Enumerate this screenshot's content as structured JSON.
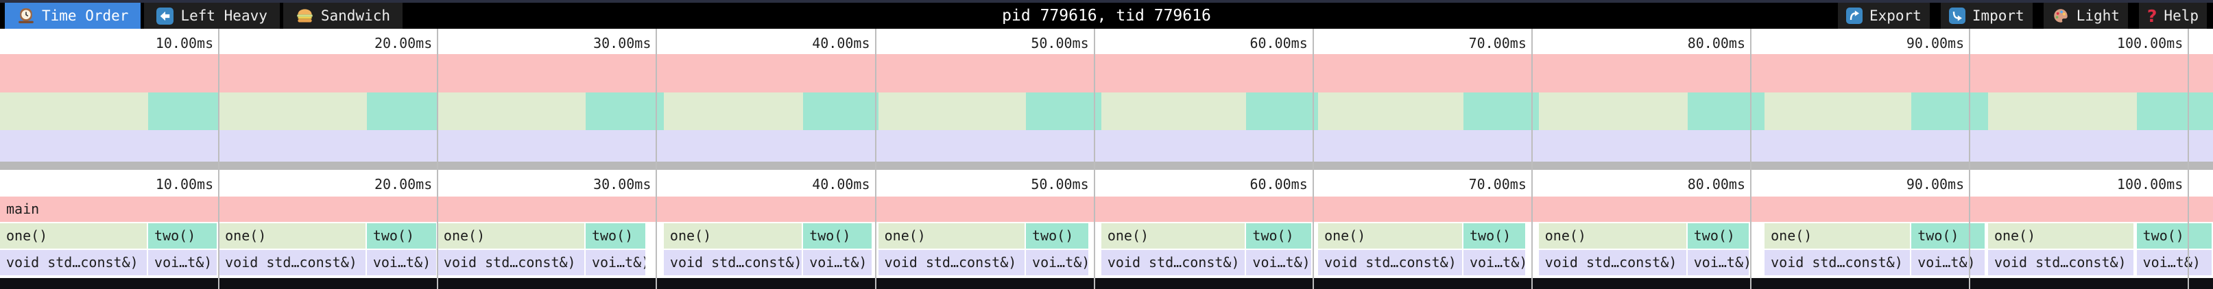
{
  "toolbar": {
    "tabs": [
      {
        "id": "time-order",
        "label": "Time Order",
        "icon": "clock-icon",
        "active": true
      },
      {
        "id": "left-heavy",
        "label": "Left Heavy",
        "icon": "left-arrow-icon",
        "active": false
      },
      {
        "id": "sandwich",
        "label": "Sandwich",
        "icon": "sandwich-icon",
        "active": false
      }
    ],
    "title": "pid 779616, tid 779616",
    "actions": [
      {
        "id": "export",
        "label": "Export",
        "icon": "export-icon"
      },
      {
        "id": "import",
        "label": "Import",
        "icon": "import-icon"
      },
      {
        "id": "light",
        "label": "Light",
        "icon": "palette-icon"
      },
      {
        "id": "help",
        "label": "Help",
        "icon": "question-icon"
      }
    ]
  },
  "colors": {
    "topstrip": "#2b2f41",
    "toolbar-bg": "#000000",
    "tab-bg": "#1f1f1f",
    "accent": "#3e86de",
    "icon-blue": "#3b88c3",
    "help-red": "#dd2e44",
    "grid": "#bdbdbd",
    "separator": "#b9b9b9",
    "bottom-dark": "#0f0f13",
    "root-pink": "#fbc0c0",
    "green": "#e0ecd1",
    "teal": "#9fe6d1",
    "lavender": "#dedcf8"
  },
  "chart_data": {
    "type": "flamegraph",
    "unit": "ms",
    "duration_ms": 101.12,
    "ticks": [
      {
        "ms": 10,
        "label": "10.00ms"
      },
      {
        "ms": 20,
        "label": "20.00ms"
      },
      {
        "ms": 30,
        "label": "30.00ms"
      },
      {
        "ms": 40,
        "label": "40.00ms"
      },
      {
        "ms": 50,
        "label": "50.00ms"
      },
      {
        "ms": 60,
        "label": "60.00ms"
      },
      {
        "ms": 70,
        "label": "70.00ms"
      },
      {
        "ms": 80,
        "label": "80.00ms"
      },
      {
        "ms": 90,
        "label": "90.00ms"
      },
      {
        "ms": 100,
        "label": "100.00ms"
      }
    ],
    "root": {
      "label": "main",
      "start_ms": 0,
      "end_ms": 101.12
    },
    "functions": {
      "one": {
        "label": "one()",
        "child_label": "void std…const&)",
        "color_key": "green"
      },
      "two": {
        "label": "two()",
        "child_label": "voi…t&)",
        "color_key": "teal"
      }
    },
    "calls": [
      {
        "fn": "one",
        "start_ms": 0.0,
        "end_ms": 6.77
      },
      {
        "fn": "two",
        "start_ms": 6.77,
        "end_ms": 9.96
      },
      {
        "fn": "one",
        "start_ms": 10.0,
        "end_ms": 16.76
      },
      {
        "fn": "two",
        "start_ms": 16.76,
        "end_ms": 19.99
      },
      {
        "fn": "one",
        "start_ms": 19.99,
        "end_ms": 26.76
      },
      {
        "fn": "two",
        "start_ms": 26.76,
        "end_ms": 29.55
      },
      {
        "fn": "one",
        "start_ms": 30.33,
        "end_ms": 36.7
      },
      {
        "fn": "two",
        "start_ms": 36.7,
        "end_ms": 39.88
      },
      {
        "fn": "one",
        "start_ms": 40.13,
        "end_ms": 46.88
      },
      {
        "fn": "two",
        "start_ms": 46.88,
        "end_ms": 49.79
      },
      {
        "fn": "one",
        "start_ms": 50.32,
        "end_ms": 56.95
      },
      {
        "fn": "two",
        "start_ms": 56.95,
        "end_ms": 59.97
      },
      {
        "fn": "one",
        "start_ms": 60.23,
        "end_ms": 66.87
      },
      {
        "fn": "two",
        "start_ms": 66.87,
        "end_ms": 69.75
      },
      {
        "fn": "one",
        "start_ms": 70.31,
        "end_ms": 77.11
      },
      {
        "fn": "two",
        "start_ms": 77.11,
        "end_ms": 79.97
      },
      {
        "fn": "one",
        "start_ms": 80.63,
        "end_ms": 87.34
      },
      {
        "fn": "two",
        "start_ms": 87.34,
        "end_ms": 90.75
      },
      {
        "fn": "one",
        "start_ms": 90.84,
        "end_ms": 97.54
      },
      {
        "fn": "two",
        "start_ms": 97.63,
        "end_ms": 101.12
      }
    ]
  }
}
